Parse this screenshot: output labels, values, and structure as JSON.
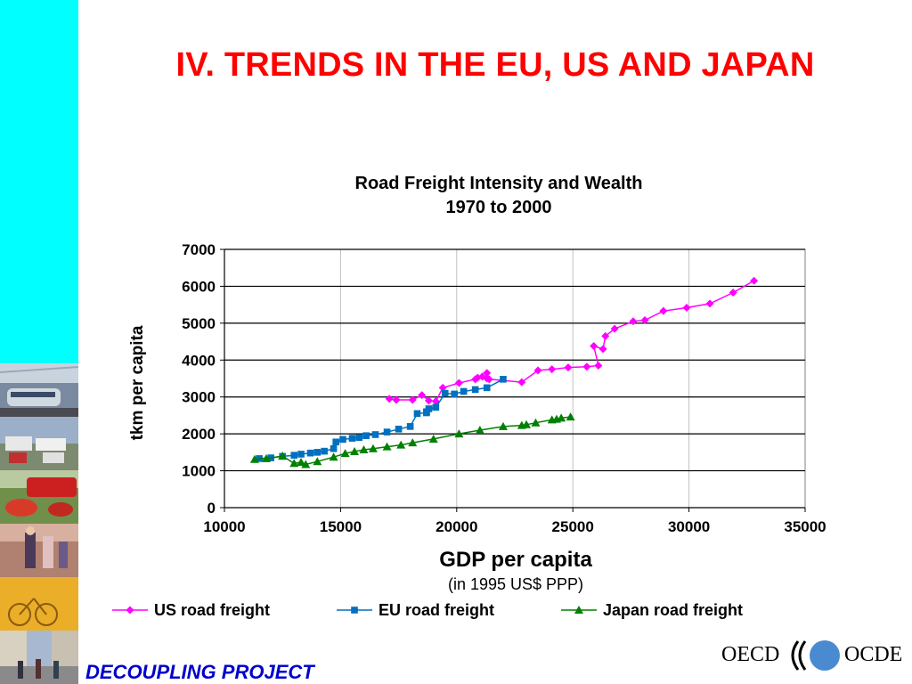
{
  "slide": {
    "title": "IV. TRENDS IN THE EU, US AND JAPAN",
    "footer": "DECOUPLING PROJECT",
    "logo_left": "OECD",
    "logo_right": "OCDE",
    "sidebar_color": "#00ffff",
    "title_color": "#ff0000",
    "footer_color": "#0000cc"
  },
  "chart_data": {
    "type": "scatter",
    "title": "Road Freight Intensity and Wealth",
    "subtitle": "1970 to 2000",
    "xlabel": "GDP per capita",
    "xlabel_sub": "(in 1995 US$ PPP)",
    "ylabel": "tkm per capita",
    "xlim": [
      10000,
      35000
    ],
    "ylim": [
      0,
      7000
    ],
    "xticks": [
      10000,
      15000,
      20000,
      25000,
      30000,
      35000
    ],
    "yticks": [
      0,
      1000,
      2000,
      3000,
      4000,
      5000,
      6000,
      7000
    ],
    "grid": "horizontal and vertical",
    "legend_position": "bottom",
    "series": [
      {
        "name": "US road freight",
        "color": "#ff00ff",
        "marker": "diamond",
        "points": [
          [
            17100,
            2950
          ],
          [
            17400,
            2920
          ],
          [
            18100,
            2920
          ],
          [
            18500,
            3050
          ],
          [
            18800,
            2900
          ],
          [
            19100,
            2880
          ],
          [
            19400,
            3250
          ],
          [
            20100,
            3380
          ],
          [
            20800,
            3480
          ],
          [
            20900,
            3520
          ],
          [
            21100,
            3550
          ],
          [
            21300,
            3500
          ],
          [
            21300,
            3650
          ],
          [
            21400,
            3480
          ],
          [
            22800,
            3400
          ],
          [
            23500,
            3720
          ],
          [
            24100,
            3750
          ],
          [
            24800,
            3800
          ],
          [
            25600,
            3820
          ],
          [
            26100,
            3850
          ],
          [
            25900,
            4380
          ],
          [
            26300,
            4300
          ],
          [
            26400,
            4650
          ],
          [
            26800,
            4850
          ],
          [
            27600,
            5050
          ],
          [
            28100,
            5080
          ],
          [
            28900,
            5330
          ],
          [
            29900,
            5420
          ],
          [
            30900,
            5530
          ],
          [
            31900,
            5830
          ],
          [
            32800,
            6150
          ]
        ]
      },
      {
        "name": "EU road freight",
        "color": "#0070c0",
        "marker": "square",
        "points": [
          [
            11500,
            1330
          ],
          [
            12000,
            1350
          ],
          [
            12500,
            1390
          ],
          [
            13000,
            1420
          ],
          [
            13300,
            1450
          ],
          [
            13700,
            1480
          ],
          [
            14000,
            1500
          ],
          [
            14300,
            1530
          ],
          [
            14700,
            1600
          ],
          [
            14800,
            1780
          ],
          [
            15100,
            1850
          ],
          [
            15500,
            1880
          ],
          [
            15800,
            1900
          ],
          [
            16100,
            1950
          ],
          [
            16500,
            1980
          ],
          [
            17000,
            2050
          ],
          [
            17500,
            2130
          ],
          [
            18000,
            2200
          ],
          [
            18300,
            2550
          ],
          [
            18700,
            2570
          ],
          [
            18700,
            2600
          ],
          [
            18800,
            2680
          ],
          [
            19100,
            2720
          ],
          [
            19500,
            3100
          ],
          [
            19900,
            3080
          ],
          [
            20300,
            3150
          ],
          [
            20800,
            3200
          ],
          [
            21300,
            3250
          ],
          [
            22000,
            3480
          ]
        ]
      },
      {
        "name": "Japan road freight",
        "color": "#008000",
        "marker": "triangle",
        "points": [
          [
            11300,
            1310
          ],
          [
            11800,
            1330
          ],
          [
            12500,
            1400
          ],
          [
            13000,
            1200
          ],
          [
            13300,
            1230
          ],
          [
            13500,
            1170
          ],
          [
            14000,
            1250
          ],
          [
            14700,
            1370
          ],
          [
            15200,
            1470
          ],
          [
            15600,
            1520
          ],
          [
            16000,
            1570
          ],
          [
            16400,
            1600
          ],
          [
            17000,
            1650
          ],
          [
            17600,
            1700
          ],
          [
            18100,
            1760
          ],
          [
            19000,
            1860
          ],
          [
            20100,
            2000
          ],
          [
            21000,
            2100
          ],
          [
            22000,
            2200
          ],
          [
            22800,
            2230
          ],
          [
            23000,
            2250
          ],
          [
            23400,
            2300
          ],
          [
            24100,
            2380
          ],
          [
            24300,
            2400
          ],
          [
            24500,
            2430
          ],
          [
            24900,
            2460
          ]
        ]
      }
    ]
  }
}
